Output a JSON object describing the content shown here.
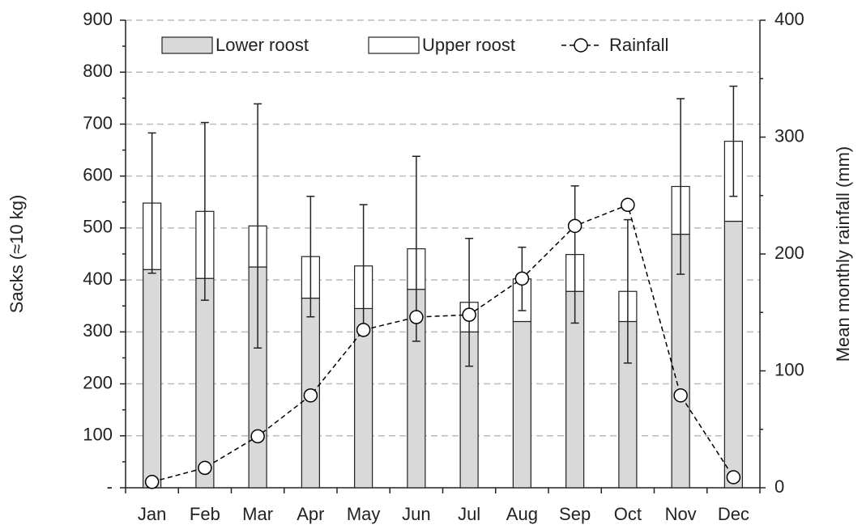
{
  "chart_data": {
    "type": "bar",
    "categories": [
      "Jan",
      "Feb",
      "Mar",
      "Apr",
      "May",
      "Jun",
      "Jul",
      "Aug",
      "Sep",
      "Oct",
      "Nov",
      "Dec"
    ],
    "ylabel": "Sacks (≈10 kg)",
    "y2label": "Mean monthly rainfall (mm)",
    "ylim": [
      0,
      900
    ],
    "yticks": [
      {
        "value": 0,
        "label": "-"
      },
      100,
      200,
      300,
      400,
      500,
      600,
      700,
      800,
      900
    ],
    "y2lim": [
      0,
      400
    ],
    "y2ticks": [
      0,
      100,
      200,
      300,
      400
    ],
    "grid": true,
    "legend": "top",
    "series": [
      {
        "name": "Lower roost",
        "type": "bar",
        "color": "#d9d9d9",
        "values": [
          420,
          403,
          425,
          365,
          345,
          382,
          300,
          320,
          378,
          320,
          488,
          513
        ]
      },
      {
        "name": "Upper roost",
        "type": "bar",
        "color": "#ffffff",
        "values": [
          128,
          129,
          79,
          80,
          82,
          78,
          57,
          82,
          71,
          58,
          92,
          154
        ],
        "errors": [
          135,
          171,
          235,
          116,
          118,
          178,
          123,
          61,
          132,
          138,
          169,
          106
        ]
      },
      {
        "name": "Rainfall",
        "type": "line",
        "axis": "y2",
        "color": "#000000",
        "values": [
          5,
          17,
          44,
          79,
          135,
          146,
          148,
          179,
          224,
          242,
          79,
          9
        ]
      }
    ]
  }
}
